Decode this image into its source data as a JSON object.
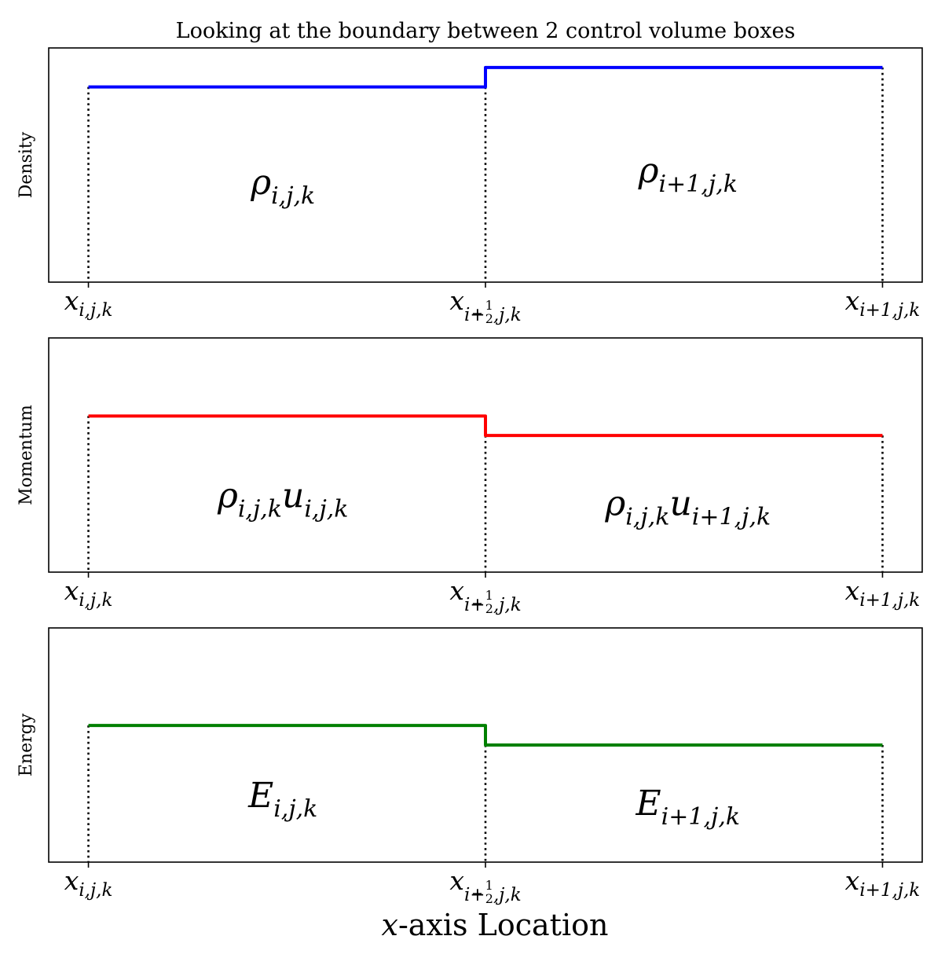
{
  "figure": {
    "title": "Looking at the boundary between 2 control volume boxes",
    "xlabel": {
      "var": "x",
      "rest": "-axis Location"
    }
  },
  "tick_labels": [
    {
      "base": "x",
      "sub": "i,j,k"
    },
    {
      "base": "x",
      "sub_pre": "i+",
      "frac_num": "1",
      "frac_den": "2",
      "sub_post": ",j,k"
    },
    {
      "base": "x",
      "sub": "i+1,j,k"
    }
  ],
  "chart_data": [
    {
      "type": "line",
      "ylabel": "Density",
      "color": "#0000ff",
      "x": [
        0,
        1,
        2
      ],
      "xlim": [
        -0.1,
        2.1
      ],
      "ylim": [
        0,
        1.2
      ],
      "grid": false,
      "series": [
        {
          "x": [
            0,
            1,
            1,
            2
          ],
          "values": [
            1.0,
            1.0,
            1.1,
            1.1
          ]
        }
      ],
      "annotations": [
        {
          "terms": [
            {
              "base": "ρ",
              "sub": "i,j,k"
            }
          ],
          "x": 0.49,
          "y": 0.5
        },
        {
          "terms": [
            {
              "base": "ρ",
              "sub": "i+1,j,k"
            }
          ],
          "x": 1.51,
          "y": 0.56
        }
      ]
    },
    {
      "type": "line",
      "ylabel": "Momentum",
      "color": "#ff0000",
      "x": [
        0,
        1,
        2
      ],
      "xlim": [
        -0.1,
        2.1
      ],
      "ylim": [
        0,
        1.2
      ],
      "grid": false,
      "series": [
        {
          "x": [
            0,
            1,
            1,
            2
          ],
          "values": [
            0.8,
            0.8,
            0.7,
            0.7
          ]
        }
      ],
      "annotations": [
        {
          "terms": [
            {
              "base": "ρ",
              "sub": "i,j,k"
            },
            {
              "base": "u",
              "sub": "i,j,k"
            }
          ],
          "x": 0.49,
          "y": 0.38
        },
        {
          "terms": [
            {
              "base": "ρ",
              "sub": "i,j,k"
            },
            {
              "base": "u",
              "sub": "i+1,j,k"
            }
          ],
          "x": 1.51,
          "y": 0.34
        }
      ]
    },
    {
      "type": "line",
      "ylabel": "Energy",
      "color": "#008000",
      "x": [
        0,
        1,
        2
      ],
      "xlim": [
        -0.1,
        2.1
      ],
      "ylim": [
        0,
        1.2
      ],
      "grid": false,
      "series": [
        {
          "x": [
            0,
            1,
            1,
            2
          ],
          "values": [
            0.7,
            0.7,
            0.6,
            0.6
          ]
        }
      ],
      "annotations": [
        {
          "terms": [
            {
              "base": "E",
              "sub": "i,j,k"
            }
          ],
          "x": 0.49,
          "y": 0.33
        },
        {
          "terms": [
            {
              "base": "E",
              "sub": "i+1,j,k"
            }
          ],
          "x": 1.51,
          "y": 0.29
        }
      ]
    }
  ]
}
